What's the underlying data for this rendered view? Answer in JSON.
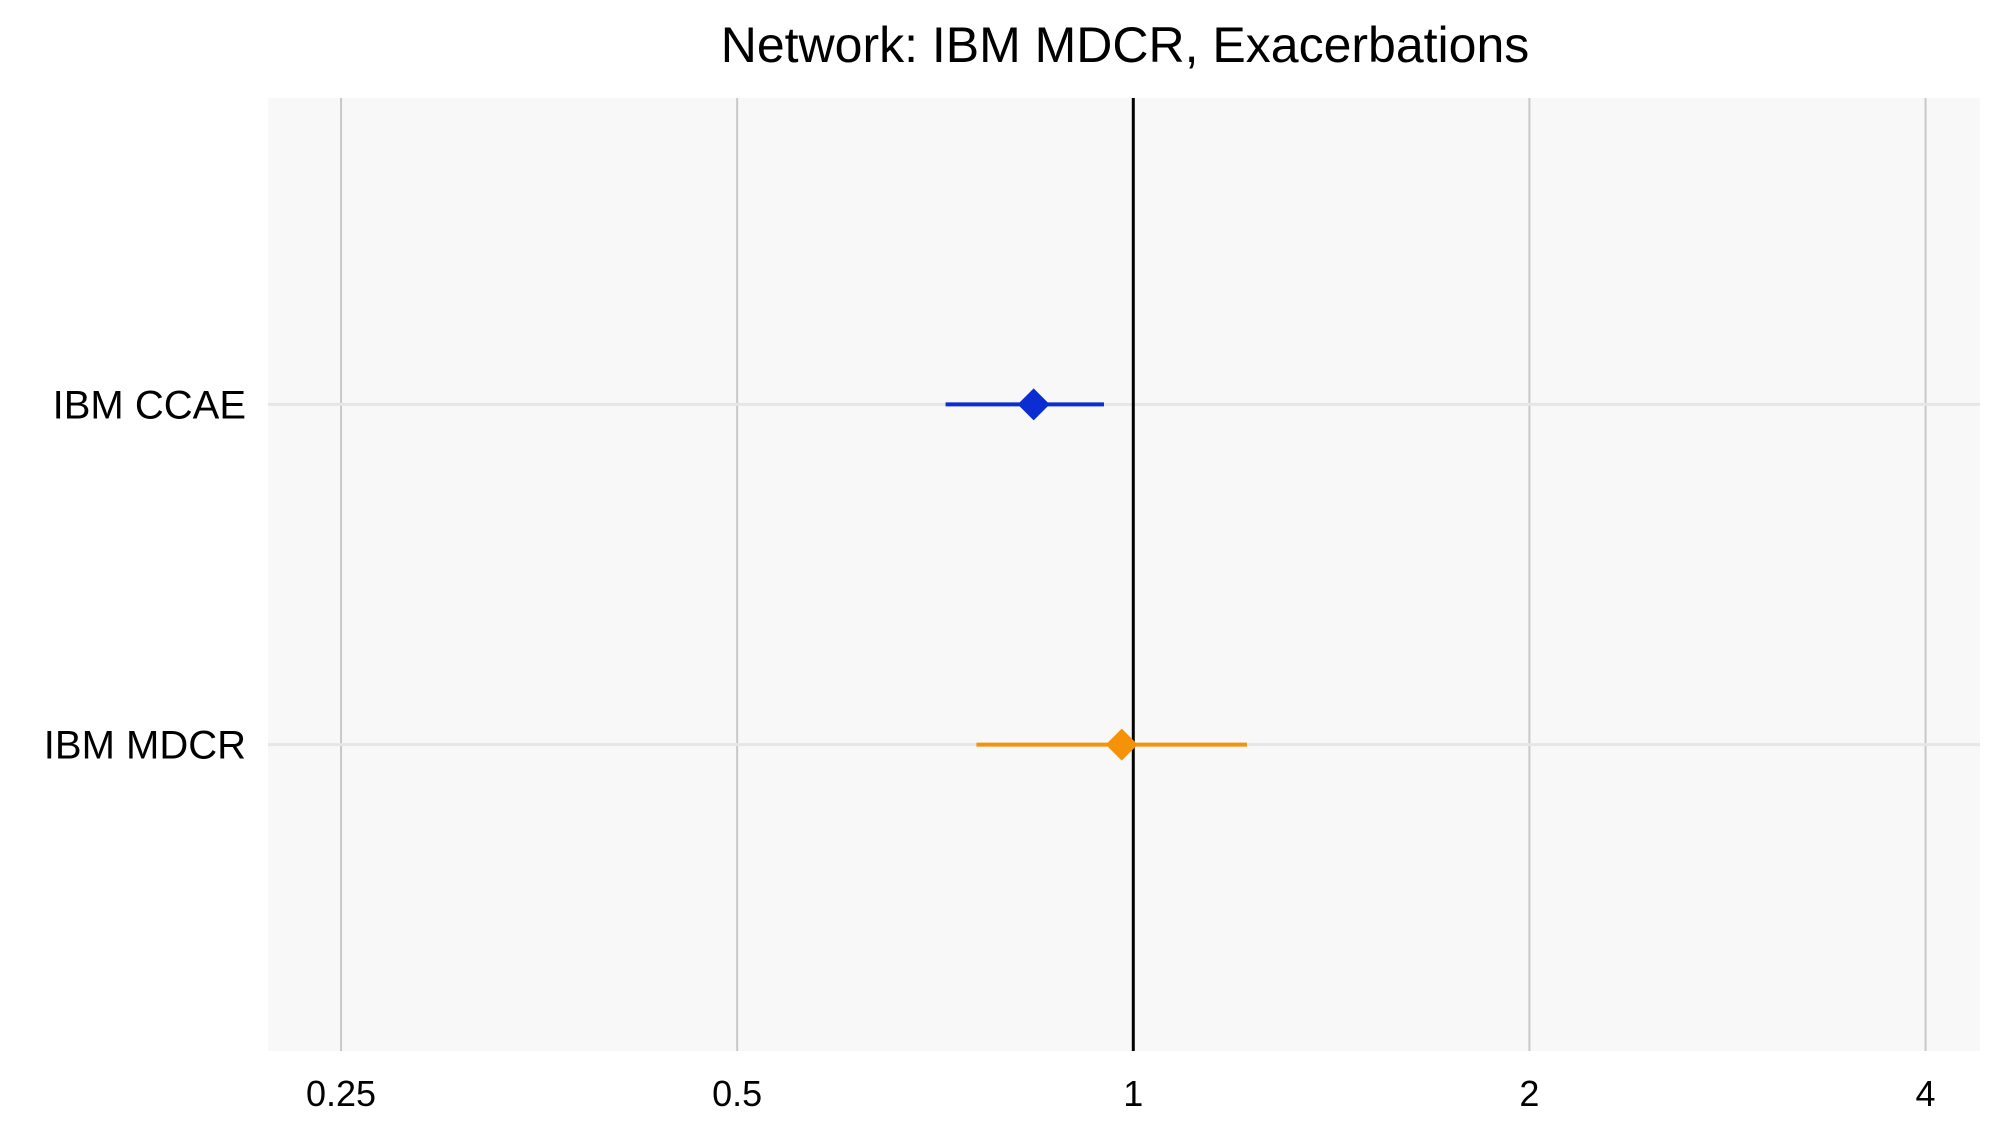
{
  "chart_data": {
    "type": "forest",
    "title": "Network: IBM MDCR, Exacerbations",
    "xlabel": "",
    "ylabel": "",
    "x_scale": "log2",
    "xlim": [
      0.22,
      4.4
    ],
    "x_ticks": [
      0.25,
      0.5,
      1,
      2,
      4
    ],
    "x_tick_labels": [
      "0.25",
      "0.5",
      "1",
      "2",
      "4"
    ],
    "reference_line": 1,
    "grid": true,
    "legend": "none",
    "rows": [
      {
        "label": "IBM CCAE",
        "estimate": 0.84,
        "ci_low": 0.72,
        "ci_high": 0.95,
        "color": "#0a2ed1"
      },
      {
        "label": "IBM MDCR",
        "estimate": 0.98,
        "ci_low": 0.76,
        "ci_high": 1.22,
        "color": "#f5920a"
      }
    ]
  },
  "colors": {
    "panel_background": "#f8f8f8",
    "grid_major": "#c8c8c8",
    "grid_horizontal": "#e6e6e6",
    "reference_line": "#000000"
  }
}
